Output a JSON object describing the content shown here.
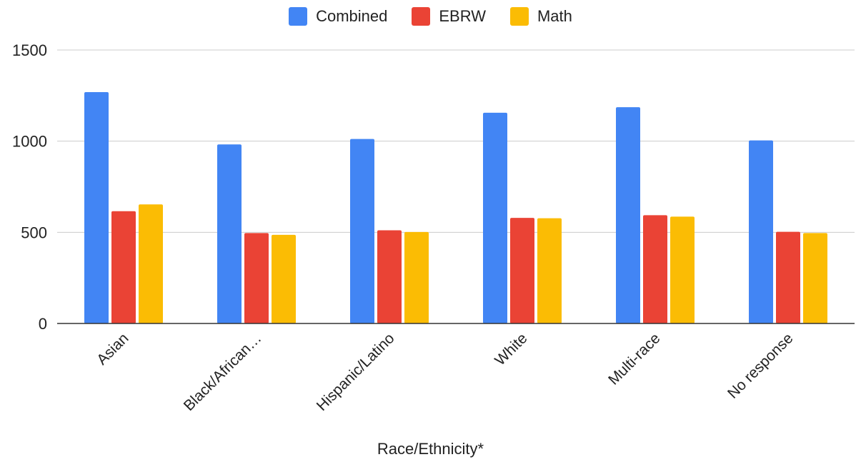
{
  "chart_data": {
    "type": "bar",
    "categories": [
      "Asian",
      "Black/African…",
      "Hispanic/Latino",
      "White",
      "Multi-race",
      "No response"
    ],
    "series": [
      {
        "name": "Combined",
        "color": "#4285F4",
        "values": [
          1269,
          982,
          1012,
          1156,
          1186,
          1004
        ]
      },
      {
        "name": "EBRW",
        "color": "#EA4335",
        "values": [
          616,
          496,
          511,
          579,
          594,
          503
        ]
      },
      {
        "name": "Math",
        "color": "#FBBC04",
        "values": [
          653,
          486,
          502,
          577,
          586,
          496
        ]
      }
    ],
    "xlabel": "Race/Ethnicity*",
    "ylabel": "",
    "ylim": [
      0,
      1500
    ],
    "yticks": [
      0,
      500,
      1000,
      1500
    ],
    "grid": true,
    "legend_position": "top"
  }
}
